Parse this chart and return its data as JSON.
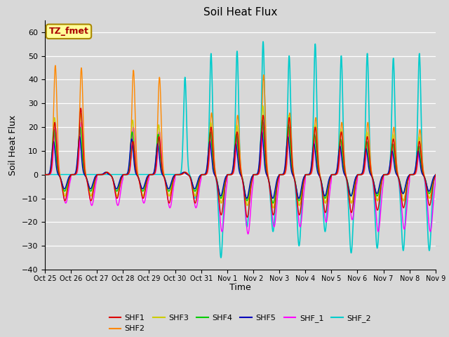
{
  "title": "Soil Heat Flux",
  "ylabel": "Soil Heat Flux",
  "xlabel": "Time",
  "ylim": [
    -40,
    65
  ],
  "fig_bg_color": "#d8d8d8",
  "plot_bg_color": "#d8d8d8",
  "series_colors": {
    "SHF1": "#dd0000",
    "SHF2": "#ff8800",
    "SHF3": "#cccc00",
    "SHF4": "#00cc00",
    "SHF5": "#0000bb",
    "SHF_1": "#ff00ff",
    "SHF_2": "#00cccc"
  },
  "annotation_text": "TZ_fmet",
  "annotation_color": "#aa0000",
  "annotation_bg": "#ffff99",
  "annotation_border": "#aa8800",
  "n_days": 15,
  "tick_labels": [
    "Oct 25",
    "Oct 26",
    "Oct 27",
    "Oct 28",
    "Oct 29",
    "Oct 30",
    "Oct 31",
    "Nov 1",
    "Nov 2",
    "Nov 3",
    "Nov 4",
    "Nov 5",
    "Nov 6",
    "Nov 7",
    "Nov 8",
    "Nov 9"
  ]
}
